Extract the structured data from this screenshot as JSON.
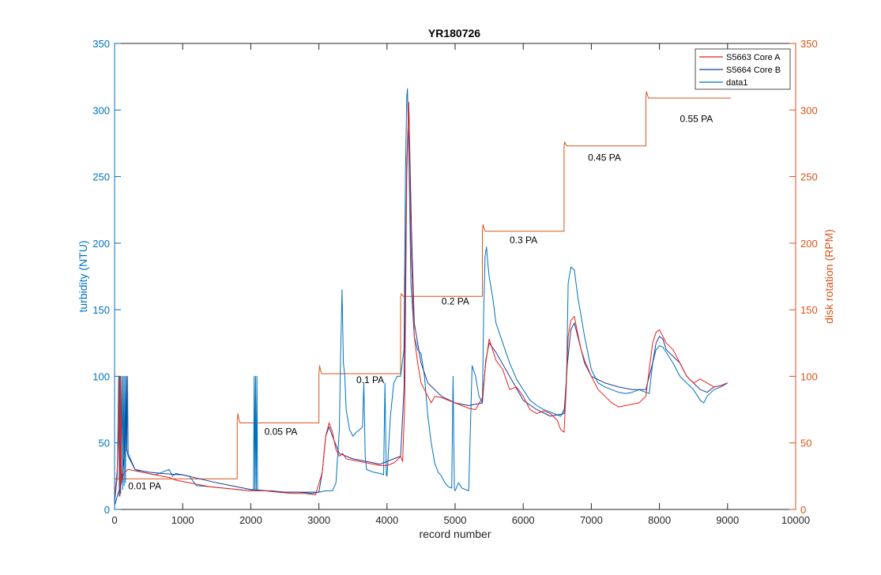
{
  "chart_data": {
    "type": "line",
    "title": "YR180726",
    "xlabel": "record number",
    "ylabel_left": "turbidity (NTU)",
    "ylabel_right": "disk rotation (RPM)",
    "xlim": [
      0,
      10000
    ],
    "ylim_left": [
      0,
      350
    ],
    "ylim_right": [
      0,
      350
    ],
    "x_ticks": [
      0,
      1000,
      2000,
      3000,
      4000,
      5000,
      6000,
      7000,
      8000,
      9000,
      10000
    ],
    "y_ticks_left": [
      0,
      50,
      100,
      150,
      200,
      250,
      300,
      350
    ],
    "y_ticks_right": [
      0,
      50,
      100,
      150,
      200,
      250,
      300,
      350
    ],
    "legend": {
      "placement": "top-right",
      "entries": [
        "S5663 Core A",
        "S5664 Core B",
        "data1"
      ]
    },
    "colors": {
      "core_a": "#e8221e",
      "core_b": "#1f3a93",
      "data1": "#0072bd",
      "rpm": "#d95319",
      "left_axis": "#0072bd",
      "right_axis": "#d95319"
    },
    "annotations": [
      {
        "text": "0.01 PA",
        "x": 200,
        "y": 15
      },
      {
        "text": "0.05 PA",
        "x": 2200,
        "y": 56
      },
      {
        "text": "0.1 PA",
        "x": 3550,
        "y": 95
      },
      {
        "text": "0.2 PA",
        "x": 4800,
        "y": 154
      },
      {
        "text": "0.3 PA",
        "x": 5800,
        "y": 200
      },
      {
        "text": "0.45 PA",
        "x": 6950,
        "y": 262
      },
      {
        "text": "0.55 PA",
        "x": 8300,
        "y": 291
      }
    ],
    "series": [
      {
        "name": "S5663 Core A",
        "axis": "left",
        "color": "#e8221e",
        "x": [
          0,
          40,
          60,
          70,
          80,
          90,
          100,
          120,
          150,
          200,
          300,
          400,
          500,
          600,
          700,
          800,
          900,
          1000,
          1100,
          1200,
          1400,
          1600,
          1800,
          2000,
          2200,
          2400,
          2600,
          2800,
          2950,
          3050,
          3100,
          3150,
          3200,
          3250,
          3300,
          3350,
          3400,
          3500,
          3600,
          3700,
          3800,
          3900,
          4000,
          4100,
          4150,
          4200,
          4230,
          4260,
          4290,
          4320,
          4350,
          4400,
          4450,
          4500,
          4550,
          4600,
          4650,
          4700,
          4800,
          4900,
          5000,
          5100,
          5200,
          5300,
          5400,
          5450,
          5500,
          5550,
          5600,
          5700,
          5800,
          5900,
          6000,
          6100,
          6200,
          6300,
          6400,
          6500,
          6550,
          6600,
          6630,
          6660,
          6700,
          6750,
          6800,
          6850,
          6900,
          7000,
          7100,
          7200,
          7300,
          7400,
          7500,
          7600,
          7700,
          7800,
          7850,
          7900,
          7950,
          8000,
          8050,
          8100,
          8200,
          8300,
          8400,
          8500,
          8600,
          8700,
          8800,
          8900,
          9000
        ],
        "y": [
          8,
          30,
          60,
          100,
          10,
          100,
          20,
          25,
          28,
          30,
          29,
          28,
          27,
          26,
          25,
          24,
          22,
          21,
          20,
          19,
          17,
          16,
          15,
          14,
          14,
          13,
          12,
          12,
          11,
          28,
          55,
          65,
          58,
          45,
          40,
          42,
          38,
          37,
          36,
          35,
          34,
          33,
          33,
          35,
          37,
          40,
          36,
          80,
          250,
          306,
          200,
          130,
          110,
          95,
          90,
          85,
          80,
          85,
          84,
          82,
          80,
          78,
          76,
          75,
          84,
          110,
          128,
          120,
          112,
          105,
          90,
          92,
          85,
          75,
          72,
          74,
          72,
          67,
          60,
          58,
          90,
          130,
          142,
          145,
          132,
          120,
          112,
          100,
          90,
          85,
          80,
          77,
          78,
          79,
          80,
          85,
          105,
          125,
          133,
          135,
          130,
          125,
          120,
          110,
          100,
          95,
          98,
          95,
          92,
          93,
          95
        ]
      },
      {
        "name": "S5664 Core B",
        "axis": "left",
        "color": "#1f3a93",
        "x": [
          0,
          100,
          140,
          160,
          170,
          180,
          200,
          300,
          500,
          700,
          1000,
          1500,
          2000,
          2500,
          3000,
          3050,
          3100,
          3150,
          3200,
          3300,
          3400,
          3500,
          3700,
          3900,
          4100,
          4200,
          4250,
          4290,
          4320,
          4360,
          4400,
          4500,
          4600,
          4800,
          5000,
          5200,
          5400,
          5450,
          5500,
          5600,
          5800,
          6000,
          6200,
          6400,
          6600,
          6650,
          6700,
          6750,
          6800,
          6900,
          7000,
          7200,
          7400,
          7600,
          7800,
          7900,
          7950,
          8000,
          8050,
          8100,
          8200,
          8300,
          8400,
          8500,
          8600,
          8700,
          8800,
          8900,
          9000
        ],
        "y": [
          3,
          20,
          40,
          60,
          100,
          45,
          40,
          30,
          28,
          27,
          26,
          20,
          15,
          13,
          13,
          28,
          55,
          62,
          55,
          42,
          40,
          38,
          36,
          34,
          38,
          40,
          90,
          260,
          303,
          210,
          140,
          110,
          95,
          85,
          80,
          78,
          80,
          112,
          125,
          118,
          100,
          82,
          75,
          70,
          72,
          110,
          135,
          140,
          130,
          110,
          100,
          95,
          92,
          90,
          90,
          110,
          125,
          130,
          128,
          120,
          115,
          110,
          100,
          95,
          90,
          88,
          92,
          93,
          95
        ]
      },
      {
        "name": "data1",
        "axis": "left",
        "color": "#0072bd",
        "x": [
          0,
          40,
          60,
          70,
          80,
          90,
          110,
          120,
          130,
          140,
          150,
          160,
          170,
          180,
          190,
          200,
          300,
          400,
          500,
          600,
          700,
          800,
          850,
          900,
          1000,
          1100,
          1200,
          1400,
          1600,
          1800,
          2000,
          2040,
          2050,
          2060,
          2070,
          2080,
          2090,
          2100,
          2300,
          2500,
          2700,
          2900,
          3000,
          3100,
          3200,
          3250,
          3300,
          3320,
          3340,
          3360,
          3380,
          3400,
          3450,
          3500,
          3550,
          3600,
          3640,
          3660,
          3680,
          3700,
          3800,
          3900,
          3950,
          3970,
          3990,
          4000,
          4050,
          4100,
          4150,
          4200,
          4250,
          4270,
          4290,
          4300,
          4320,
          4350,
          4400,
          4450,
          4500,
          4550,
          4600,
          4650,
          4700,
          4750,
          4800,
          4850,
          4900,
          4950,
          4970,
          4990,
          5000,
          5050,
          5100,
          5150,
          5200,
          5250,
          5300,
          5350,
          5400,
          5420,
          5440,
          5460,
          5480,
          5500,
          5550,
          5600,
          5700,
          5800,
          5900,
          6000,
          6100,
          6200,
          6300,
          6400,
          6500,
          6550,
          6600,
          6620,
          6640,
          6660,
          6700,
          6750,
          6800,
          6900,
          7000,
          7100,
          7200,
          7300,
          7400,
          7500,
          7600,
          7700,
          7800,
          7850,
          7900,
          7950,
          8000,
          8050,
          8100,
          8200,
          8300,
          8400,
          8500,
          8600,
          8650,
          8700,
          8800,
          8900,
          9000
        ],
        "y": [
          5,
          25,
          100,
          10,
          100,
          12,
          100,
          15,
          100,
          18,
          100,
          20,
          100,
          44,
          100,
          42,
          30,
          28,
          27,
          26,
          28,
          30,
          25,
          27,
          26,
          25,
          18,
          17,
          16,
          15,
          14,
          15,
          100,
          14,
          100,
          14,
          100,
          14,
          14,
          13,
          13,
          12,
          13,
          14,
          14,
          20,
          60,
          120,
          165,
          110,
          100,
          75,
          60,
          55,
          58,
          60,
          62,
          95,
          40,
          30,
          28,
          27,
          26,
          95,
          26,
          25,
          70,
          95,
          100,
          100,
          120,
          250,
          310,
          316,
          270,
          170,
          130,
          120,
          117,
          100,
          70,
          50,
          35,
          28,
          25,
          20,
          17,
          16,
          100,
          15,
          14,
          20,
          16,
          15,
          14,
          108,
          100,
          85,
          80,
          150,
          190,
          197,
          185,
          175,
          160,
          140,
          125,
          110,
          98,
          90,
          82,
          78,
          75,
          73,
          71,
          70,
          75,
          80,
          110,
          170,
          182,
          180,
          160,
          130,
          105,
          95,
          92,
          90,
          88,
          87,
          88,
          90,
          88,
          87,
          110,
          120,
          123,
          122,
          118,
          110,
          100,
          95,
          90,
          82,
          80,
          85,
          90,
          92,
          95
        ]
      },
      {
        "name": "disk rotation",
        "axis": "right",
        "color": "#d95319",
        "x": [
          0,
          1800,
          1800,
          1810,
          1825,
          1840,
          3000,
          3000,
          3010,
          3025,
          3040,
          4200,
          4200,
          4210,
          4225,
          4240,
          5400,
          5400,
          5410,
          5425,
          5440,
          6600,
          6600,
          6610,
          6625,
          6640,
          7800,
          7800,
          7810,
          7825,
          7840,
          9050
        ],
        "y": [
          23,
          23,
          65,
          72,
          68,
          65,
          65,
          102,
          108,
          104,
          102,
          102,
          160,
          162,
          161,
          160,
          160,
          209,
          214,
          211,
          209,
          209,
          273,
          276,
          274,
          273,
          273,
          309,
          314,
          311,
          309,
          309
        ]
      }
    ]
  }
}
